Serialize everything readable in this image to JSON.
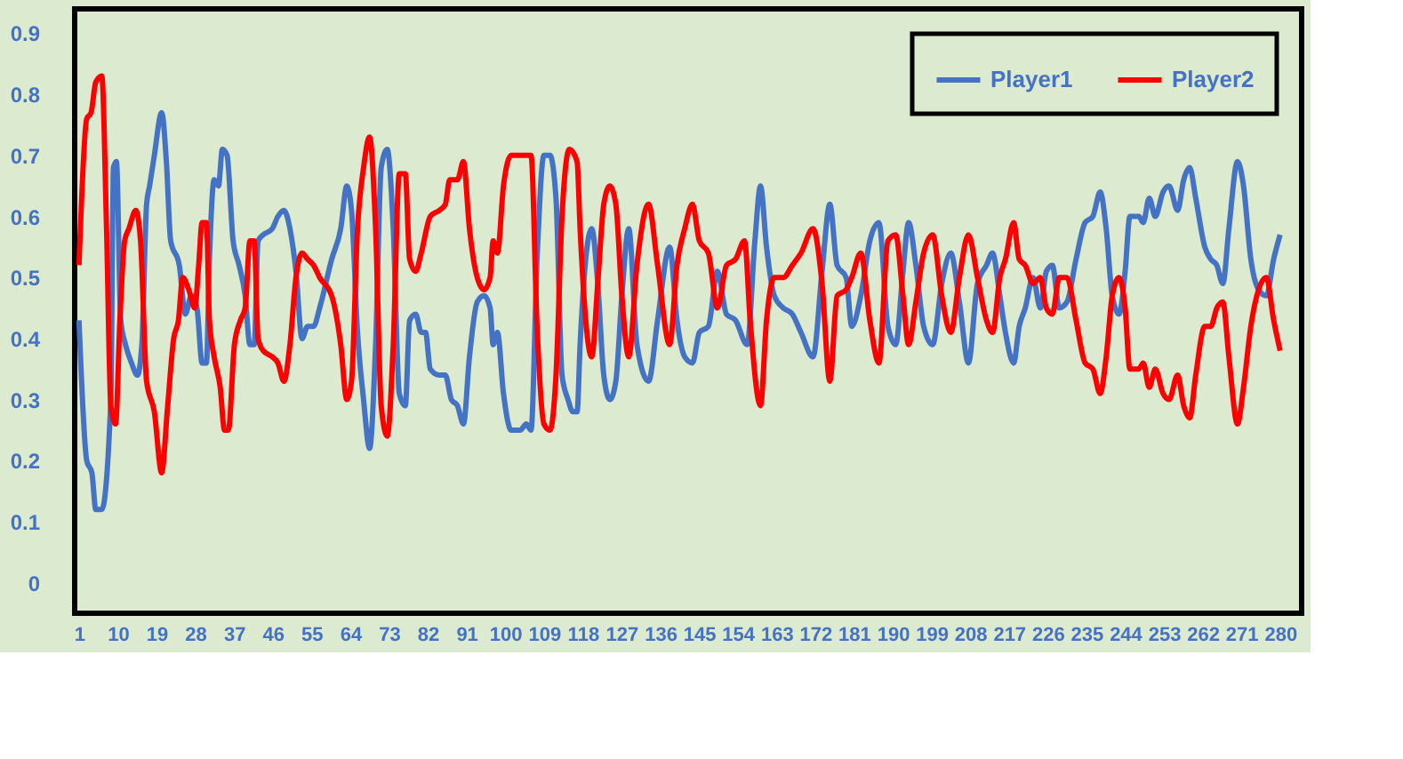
{
  "chart_data": {
    "type": "line",
    "xlim": [
      0,
      285
    ],
    "xticks": [
      1,
      10,
      19,
      28,
      37,
      46,
      55,
      64,
      73,
      82,
      91,
      100,
      109,
      118,
      127,
      136,
      145,
      154,
      163,
      172,
      181,
      190,
      199,
      208,
      217,
      226,
      235,
      244,
      253,
      262,
      271,
      280
    ],
    "ylim": [
      -0.05,
      0.94
    ],
    "yticks": [
      0,
      0.1,
      0.2,
      0.3,
      0.4,
      0.5,
      0.6,
      0.7,
      0.8,
      0.9
    ],
    "grid": false,
    "legend": "top right",
    "series": [
      {
        "name": "Player1",
        "color": "#4472c4",
        "x": [
          1,
          2.8,
          4,
          4.9,
          6.3,
          8.4,
          9,
          9.7,
          10.7,
          11.8,
          13.2,
          14.6,
          15.6,
          16.7,
          17.4,
          18.5,
          20.2,
          21.3,
          22.3,
          24.3,
          25.7,
          27.1,
          28.4,
          29.6,
          30.6,
          31.3,
          32.4,
          33.4,
          34.3,
          35.4,
          36.8,
          38.2,
          39.6,
          40.7,
          41.7,
          42.6,
          43.8,
          45.9,
          47.2,
          48.6,
          50,
          51.4,
          52.8,
          54.1,
          55.5,
          56.9,
          59.7,
          61.8,
          63.2,
          64.3,
          65.7,
          67.1,
          68.5,
          69.9,
          71.2,
          72.6,
          74,
          75.4,
          76.8,
          77.8,
          79.2,
          80.5,
          81.5,
          82.6,
          84.7,
          86.1,
          87.5,
          88.9,
          90.3,
          91.7,
          93.5,
          95.1,
          96.5,
          97.2,
          98.2,
          99.6,
          101.4,
          103.5,
          104.9,
          106,
          107.4,
          109,
          110.4,
          111.8,
          113.2,
          114.6,
          115.7,
          116.7,
          117.4,
          118.7,
          120.1,
          121.5,
          122.9,
          124.3,
          125.7,
          127.1,
          128.7,
          130.6,
          133.3,
          135.4,
          138.2,
          139.9,
          141.7,
          143.5,
          145.1,
          147.2,
          149.3,
          151.4,
          153.5,
          156.2,
          158,
          159.3,
          160.7,
          162.5,
          164.6,
          166.7,
          168.7,
          171.5,
          173.6,
          175.4,
          177.1,
          179.2,
          180.5,
          182.6,
          184.7,
          186.8,
          188.9,
          190.7,
          192.4,
          193.7,
          195.4,
          197.2,
          199.3,
          201.4,
          203.5,
          205.5,
          207.6,
          209.7,
          211.8,
          213.2,
          214.9,
          216.2,
          218.1,
          219.4,
          220.8,
          222.6,
          224.3,
          225.7,
          227.1,
          228.7,
          230.5,
          232.6,
          234.7,
          236.5,
          238.2,
          239.6,
          241,
          242.6,
          244,
          245.1,
          247.2,
          248.2,
          249.6,
          251,
          252.8,
          254.2,
          256.2,
          257.6,
          259,
          260.4,
          262.5,
          263.9,
          265.3,
          266.7,
          268.1,
          270.1,
          271.5,
          273.2,
          275,
          276.8,
          278.5,
          280
        ],
        "values": [
          0.43,
          0.2,
          0.18,
          0.12,
          0.12,
          0.3,
          0.68,
          0.69,
          0.43,
          0.39,
          0.36,
          0.34,
          0.39,
          0.62,
          0.65,
          0.7,
          0.77,
          0.69,
          0.56,
          0.52,
          0.44,
          0.47,
          0.45,
          0.36,
          0.36,
          0.53,
          0.66,
          0.65,
          0.71,
          0.7,
          0.56,
          0.52,
          0.47,
          0.39,
          0.39,
          0.56,
          0.57,
          0.58,
          0.6,
          0.61,
          0.58,
          0.51,
          0.4,
          0.42,
          0.42,
          0.45,
          0.53,
          0.58,
          0.65,
          0.61,
          0.41,
          0.3,
          0.22,
          0.39,
          0.68,
          0.71,
          0.58,
          0.31,
          0.29,
          0.43,
          0.44,
          0.41,
          0.41,
          0.35,
          0.34,
          0.34,
          0.3,
          0.29,
          0.26,
          0.37,
          0.46,
          0.47,
          0.45,
          0.39,
          0.41,
          0.31,
          0.25,
          0.25,
          0.26,
          0.25,
          0.53,
          0.7,
          0.7,
          0.63,
          0.34,
          0.3,
          0.28,
          0.28,
          0.39,
          0.53,
          0.58,
          0.49,
          0.34,
          0.3,
          0.33,
          0.47,
          0.58,
          0.39,
          0.33,
          0.43,
          0.55,
          0.43,
          0.37,
          0.36,
          0.41,
          0.42,
          0.51,
          0.44,
          0.43,
          0.39,
          0.56,
          0.65,
          0.55,
          0.47,
          0.45,
          0.44,
          0.41,
          0.37,
          0.51,
          0.62,
          0.52,
          0.5,
          0.42,
          0.47,
          0.56,
          0.59,
          0.42,
          0.39,
          0.51,
          0.59,
          0.52,
          0.42,
          0.39,
          0.49,
          0.54,
          0.46,
          0.36,
          0.49,
          0.52,
          0.54,
          0.47,
          0.41,
          0.36,
          0.42,
          0.45,
          0.5,
          0.45,
          0.51,
          0.52,
          0.45,
          0.46,
          0.53,
          0.59,
          0.6,
          0.64,
          0.58,
          0.47,
          0.44,
          0.51,
          0.6,
          0.6,
          0.59,
          0.63,
          0.6,
          0.64,
          0.65,
          0.61,
          0.66,
          0.68,
          0.63,
          0.55,
          0.53,
          0.52,
          0.49,
          0.58,
          0.69,
          0.65,
          0.53,
          0.48,
          0.47,
          0.53,
          0.57
        ]
      },
      {
        "name": "Player2",
        "color": "#ff0000",
        "x": [
          1,
          2.8,
          3.8,
          4.9,
          6.3,
          7.4,
          8.4,
          9.5,
          10.5,
          11.6,
          12.6,
          14.2,
          15.3,
          16.7,
          18.5,
          20.2,
          21.6,
          23,
          24.1,
          25.1,
          26.5,
          27.9,
          28.8,
          29.6,
          30.6,
          31.3,
          32.4,
          33.8,
          34.8,
          35.7,
          37.1,
          38.5,
          39.6,
          40.7,
          41.7,
          42.6,
          43.8,
          45.9,
          47.2,
          48.6,
          50,
          51.4,
          52.8,
          54.1,
          55.5,
          56.9,
          59.7,
          61.8,
          63.2,
          64.3,
          65.7,
          67.1,
          68.5,
          69.9,
          71.2,
          72.6,
          74,
          75.4,
          76.8,
          77.8,
          79.2,
          80.5,
          82.6,
          84.7,
          86.1,
          87.1,
          88.9,
          90.3,
          91.7,
          93.5,
          95.1,
          96.5,
          97.2,
          98.2,
          99.6,
          101.4,
          103.5,
          104.9,
          106,
          107.4,
          109,
          110.4,
          111.8,
          113.2,
          114.9,
          116.7,
          117.4,
          118.7,
          120.1,
          121.5,
          122.9,
          124.3,
          125.7,
          127.1,
          128.7,
          130.6,
          133.3,
          135.4,
          138.2,
          139.9,
          141.7,
          143.5,
          145.1,
          147.2,
          149.3,
          151.4,
          153.5,
          155.6,
          156.9,
          159.3,
          160.7,
          162.5,
          164.6,
          166.7,
          168.7,
          171.5,
          173.6,
          175.4,
          177.1,
          179.2,
          180.5,
          182.6,
          184.7,
          186.8,
          188.9,
          190.7,
          192.4,
          193.7,
          195.4,
          197.2,
          199.3,
          201.4,
          203.5,
          205.5,
          207.6,
          209.7,
          211.8,
          213.2,
          214.9,
          216.2,
          218.1,
          219.4,
          220.8,
          222.6,
          224.3,
          225.7,
          227.1,
          228.7,
          230.5,
          232.6,
          234.7,
          236.5,
          238.2,
          239.6,
          241,
          242.6,
          244,
          245.1,
          247.2,
          248.2,
          249.6,
          251,
          252.8,
          254.2,
          256.2,
          257.6,
          259,
          260.4,
          262.5,
          263.9,
          265.3,
          266.7,
          268.1,
          270.1,
          271.5,
          273.2,
          275,
          276.8,
          278.5,
          280
        ],
        "values": [
          0.52,
          0.76,
          0.77,
          0.82,
          0.83,
          0.58,
          0.29,
          0.26,
          0.43,
          0.56,
          0.58,
          0.61,
          0.56,
          0.33,
          0.28,
          0.18,
          0.29,
          0.4,
          0.43,
          0.5,
          0.48,
          0.45,
          0.52,
          0.59,
          0.59,
          0.43,
          0.37,
          0.32,
          0.25,
          0.25,
          0.39,
          0.43,
          0.45,
          0.56,
          0.56,
          0.4,
          0.38,
          0.37,
          0.36,
          0.33,
          0.39,
          0.5,
          0.54,
          0.53,
          0.52,
          0.5,
          0.47,
          0.39,
          0.3,
          0.33,
          0.58,
          0.68,
          0.73,
          0.58,
          0.29,
          0.24,
          0.39,
          0.67,
          0.67,
          0.53,
          0.51,
          0.54,
          0.6,
          0.61,
          0.62,
          0.66,
          0.66,
          0.69,
          0.58,
          0.5,
          0.48,
          0.5,
          0.56,
          0.54,
          0.65,
          0.7,
          0.7,
          0.7,
          0.7,
          0.42,
          0.26,
          0.25,
          0.34,
          0.6,
          0.71,
          0.69,
          0.58,
          0.43,
          0.37,
          0.49,
          0.62,
          0.65,
          0.62,
          0.47,
          0.37,
          0.52,
          0.62,
          0.52,
          0.39,
          0.52,
          0.58,
          0.62,
          0.56,
          0.54,
          0.45,
          0.52,
          0.53,
          0.56,
          0.43,
          0.29,
          0.43,
          0.5,
          0.5,
          0.52,
          0.54,
          0.58,
          0.49,
          0.33,
          0.47,
          0.48,
          0.5,
          0.54,
          0.43,
          0.36,
          0.56,
          0.57,
          0.47,
          0.39,
          0.46,
          0.54,
          0.57,
          0.47,
          0.41,
          0.5,
          0.57,
          0.5,
          0.43,
          0.41,
          0.5,
          0.53,
          0.59,
          0.53,
          0.52,
          0.49,
          0.5,
          0.45,
          0.44,
          0.5,
          0.5,
          0.43,
          0.36,
          0.35,
          0.31,
          0.37,
          0.47,
          0.5,
          0.45,
          0.35,
          0.35,
          0.36,
          0.32,
          0.35,
          0.31,
          0.3,
          0.34,
          0.29,
          0.27,
          0.34,
          0.42,
          0.42,
          0.45,
          0.46,
          0.37,
          0.26,
          0.32,
          0.42,
          0.48,
          0.5,
          0.43,
          0.38
        ]
      }
    ]
  }
}
